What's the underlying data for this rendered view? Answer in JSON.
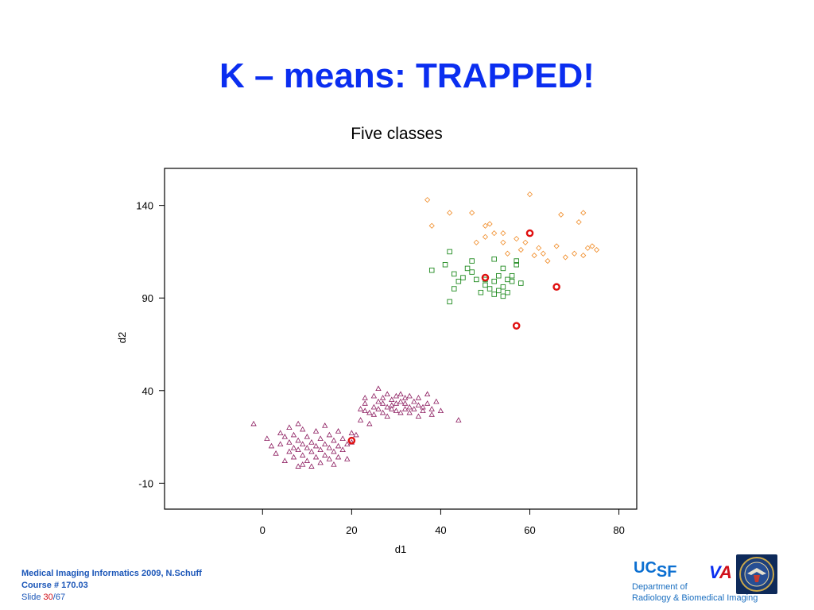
{
  "slide": {
    "title": "K – means:  TRAPPED!"
  },
  "chart_data": {
    "type": "scatter",
    "title": "Five classes",
    "xlabel": "d1",
    "ylabel": "d2",
    "xlim": [
      -22,
      84
    ],
    "ylim": [
      -24,
      160
    ],
    "xticks": [
      0,
      20,
      40,
      60,
      80
    ],
    "yticks": [
      -10,
      40,
      90,
      140
    ],
    "grid": false,
    "series": [
      {
        "marker": "triangle",
        "color": "#8b1a5e",
        "points": [
          [
            -2,
            22
          ],
          [
            1,
            14
          ],
          [
            2,
            10
          ],
          [
            3,
            6
          ],
          [
            4,
            17
          ],
          [
            4,
            11
          ],
          [
            5,
            2
          ],
          [
            5,
            15
          ],
          [
            6,
            20
          ],
          [
            6,
            7
          ],
          [
            6,
            12
          ],
          [
            7,
            9
          ],
          [
            7,
            16
          ],
          [
            7,
            4
          ],
          [
            8,
            22
          ],
          [
            8,
            13
          ],
          [
            8,
            -1
          ],
          [
            8,
            8
          ],
          [
            9,
            19
          ],
          [
            9,
            11
          ],
          [
            9,
            5
          ],
          [
            9,
            0
          ],
          [
            10,
            15
          ],
          [
            10,
            9
          ],
          [
            10,
            2
          ],
          [
            11,
            12
          ],
          [
            11,
            7
          ],
          [
            11,
            -1
          ],
          [
            12,
            18
          ],
          [
            12,
            10
          ],
          [
            12,
            4
          ],
          [
            13,
            14
          ],
          [
            13,
            8
          ],
          [
            13,
            1
          ],
          [
            14,
            21
          ],
          [
            14,
            11
          ],
          [
            14,
            5
          ],
          [
            15,
            16
          ],
          [
            15,
            9
          ],
          [
            15,
            3
          ],
          [
            16,
            13
          ],
          [
            16,
            7
          ],
          [
            16,
            0
          ],
          [
            17,
            18
          ],
          [
            17,
            10
          ],
          [
            17,
            4
          ],
          [
            18,
            14
          ],
          [
            18,
            8
          ],
          [
            19,
            11
          ],
          [
            19,
            3
          ],
          [
            20,
            17
          ],
          [
            20,
            12
          ],
          [
            21,
            16
          ],
          [
            22,
            30
          ],
          [
            22,
            24
          ],
          [
            23,
            36
          ],
          [
            23,
            29
          ],
          [
            23,
            33
          ],
          [
            24,
            22
          ],
          [
            24,
            28
          ],
          [
            25,
            31
          ],
          [
            25,
            37
          ],
          [
            25,
            27
          ],
          [
            26,
            34
          ],
          [
            26,
            30
          ],
          [
            26,
            41
          ],
          [
            27,
            28
          ],
          [
            27,
            33
          ],
          [
            27,
            36
          ],
          [
            28,
            31
          ],
          [
            28,
            38
          ],
          [
            28,
            26
          ],
          [
            29,
            35
          ],
          [
            29,
            30
          ],
          [
            29,
            32
          ],
          [
            30,
            37
          ],
          [
            30,
            29
          ],
          [
            30,
            33
          ],
          [
            31,
            34
          ],
          [
            31,
            28
          ],
          [
            31,
            38
          ],
          [
            32,
            30
          ],
          [
            32,
            36
          ],
          [
            32,
            33
          ],
          [
            33,
            37
          ],
          [
            33,
            31
          ],
          [
            33,
            28
          ],
          [
            34,
            34
          ],
          [
            34,
            30
          ],
          [
            35,
            36
          ],
          [
            35,
            32
          ],
          [
            35,
            26
          ],
          [
            36,
            31
          ],
          [
            36,
            29
          ],
          [
            37,
            38
          ],
          [
            37,
            33
          ],
          [
            38,
            30
          ],
          [
            38,
            27
          ],
          [
            39,
            34
          ],
          [
            40,
            29
          ],
          [
            44,
            24
          ]
        ]
      },
      {
        "marker": "square",
        "color": "#1e8a1e",
        "points": [
          [
            38,
            105
          ],
          [
            41,
            108
          ],
          [
            42,
            88
          ],
          [
            42,
            115
          ],
          [
            43,
            95
          ],
          [
            43,
            103
          ],
          [
            44,
            99
          ],
          [
            45,
            101
          ],
          [
            46,
            106
          ],
          [
            47,
            110
          ],
          [
            47,
            104
          ],
          [
            48,
            100
          ],
          [
            49,
            93
          ],
          [
            50,
            97
          ],
          [
            50,
            100
          ],
          [
            51,
            95
          ],
          [
            52,
            92
          ],
          [
            52,
            99
          ],
          [
            52,
            111
          ],
          [
            53,
            94
          ],
          [
            53,
            102
          ],
          [
            54,
            96
          ],
          [
            54,
            91
          ],
          [
            54,
            106
          ],
          [
            55,
            100
          ],
          [
            55,
            93
          ],
          [
            56,
            99
          ],
          [
            56,
            102
          ],
          [
            57,
            108
          ],
          [
            57,
            110
          ],
          [
            58,
            98
          ]
        ]
      },
      {
        "marker": "diamond",
        "color": "#f08a24",
        "points": [
          [
            37,
            143
          ],
          [
            38,
            129
          ],
          [
            42,
            136
          ],
          [
            47,
            136
          ],
          [
            48,
            120
          ],
          [
            50,
            129
          ],
          [
            50,
            123
          ],
          [
            51,
            130
          ],
          [
            52,
            125
          ],
          [
            54,
            125
          ],
          [
            54,
            120
          ],
          [
            55,
            114
          ],
          [
            57,
            122
          ],
          [
            58,
            116
          ],
          [
            59,
            120
          ],
          [
            60,
            146
          ],
          [
            61,
            113
          ],
          [
            62,
            117
          ],
          [
            63,
            114
          ],
          [
            64,
            110
          ],
          [
            66,
            118
          ],
          [
            67,
            135
          ],
          [
            68,
            112
          ],
          [
            70,
            114
          ],
          [
            71,
            131
          ],
          [
            72,
            136
          ],
          [
            72,
            113
          ],
          [
            73,
            117
          ],
          [
            74,
            118
          ],
          [
            75,
            116
          ]
        ]
      }
    ],
    "centroids": {
      "color": "#e01010",
      "points": [
        [
          20,
          13
        ],
        [
          50,
          101
        ],
        [
          57,
          75
        ],
        [
          60,
          125
        ],
        [
          66,
          96
        ]
      ]
    }
  },
  "footer": {
    "line1": "Medical Imaging Informatics 2009, N.Schuff",
    "line2": "Course # 170.03",
    "slide_prefix": "Slide ",
    "slide_current": "30",
    "slide_total": "/67"
  },
  "logos": {
    "ucsf_uc": "UC",
    "ucsf_sf": "SF",
    "va_v": "V",
    "va_a": "A",
    "dept_line1": "Department of",
    "dept_line2": "Radiology & Biomedical Imaging"
  }
}
